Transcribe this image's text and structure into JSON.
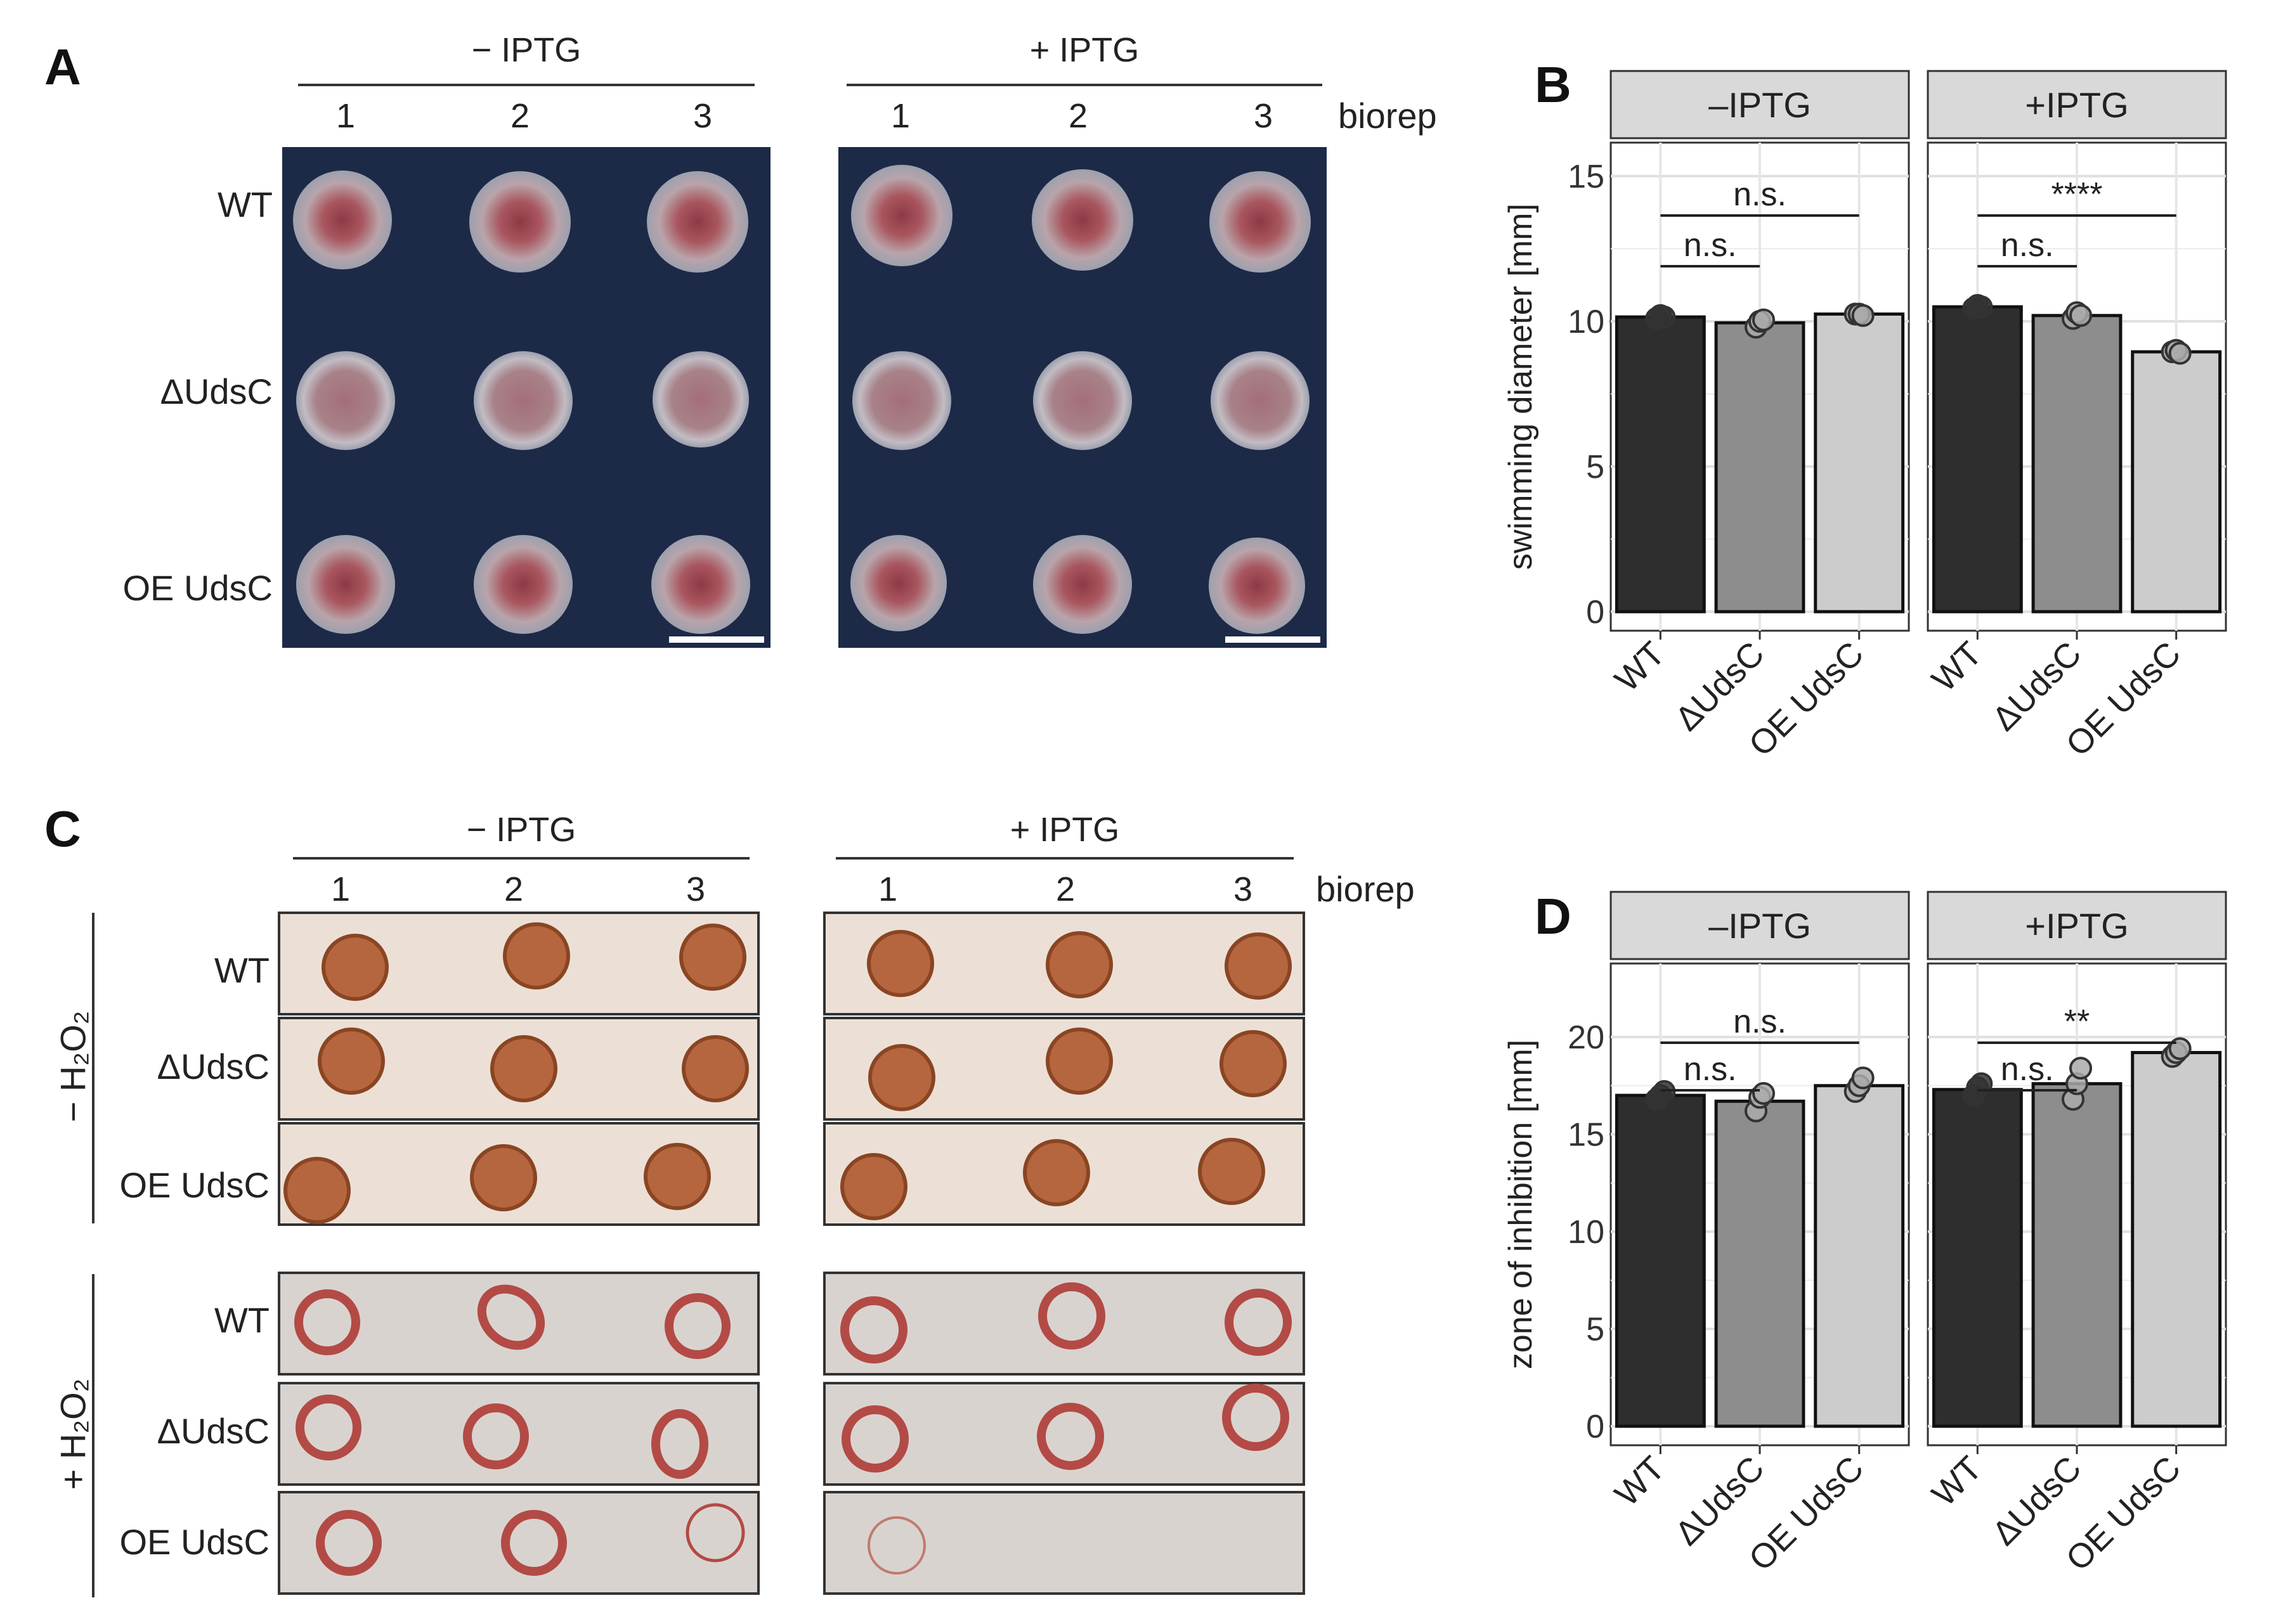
{
  "panel_labels": {
    "A": "A",
    "B": "B",
    "C": "C",
    "D": "D"
  },
  "conditions": {
    "minus": "− IPTG",
    "plus": "+ IPTG"
  },
  "bioreps": [
    "1",
    "2",
    "3"
  ],
  "biorep_label": "biorep",
  "strains": [
    "WT",
    "ΔUdsC",
    "OE UdsC"
  ],
  "peroxide_groups": {
    "minus": "− H₂O₂",
    "plus": "+ H₂O₂"
  },
  "colors": {
    "dark_plate": "#1c2a47",
    "agar_plate": "#ece0d6",
    "agar_plate_h2o2": "#d9d3cf",
    "colony_halo": "#b9b4bb",
    "colony_center": "#a46e79",
    "colony_red": "#9c4c52",
    "disk_brown": "#b5663e",
    "ring_red": "#b34a45",
    "bar_wt": "#2e2e2e",
    "bar_dudsc": "#8d8d8d",
    "bar_oe": "#cccccc",
    "strip": "#d9d9d9",
    "grid": "#ebebeb"
  },
  "chart_data": [
    {
      "panel": "B",
      "type": "bar",
      "ylabel": "swimming diameter [mm]",
      "ylim": [
        0,
        15.5
      ],
      "yticks": [
        0,
        5,
        10,
        15
      ],
      "categories": [
        "WT",
        "ΔUdsC",
        "OE UdsC"
      ],
      "facets": [
        {
          "label": "–IPTG",
          "values": [
            10.15,
            9.95,
            10.25
          ],
          "points": [
            [
              10.1,
              10.2,
              10.15
            ],
            [
              9.8,
              10.0,
              10.05
            ],
            [
              10.25,
              10.25,
              10.2
            ]
          ],
          "annotations": [
            {
              "from": 0,
              "to": 1,
              "text": "n.s.",
              "level": "low"
            },
            {
              "from": 0,
              "to": 2,
              "text": "n.s.",
              "level": "high"
            }
          ]
        },
        {
          "label": "+IPTG",
          "values": [
            10.5,
            10.2,
            8.95
          ],
          "points": [
            [
              10.45,
              10.55,
              10.5
            ],
            [
              10.1,
              10.3,
              10.2
            ],
            [
              8.95,
              9.0,
              8.9
            ]
          ],
          "annotations": [
            {
              "from": 0,
              "to": 1,
              "text": "n.s.",
              "level": "low"
            },
            {
              "from": 0,
              "to": 2,
              "text": "****",
              "level": "high"
            }
          ]
        }
      ]
    },
    {
      "panel": "D",
      "type": "bar",
      "ylabel": "zone of inhibition [mm]",
      "ylim": [
        0,
        22.8
      ],
      "yticks": [
        0,
        5,
        10,
        15,
        20
      ],
      "categories": [
        "WT",
        "ΔUdsC",
        "OE UdsC"
      ],
      "facets": [
        {
          "label": "–IPTG",
          "values": [
            17.0,
            16.7,
            17.5
          ],
          "points": [
            [
              16.8,
              17.0,
              17.2
            ],
            [
              16.2,
              16.9,
              17.1
            ],
            [
              17.2,
              17.5,
              17.9
            ]
          ],
          "annotations": [
            {
              "from": 0,
              "to": 1,
              "text": "n.s.",
              "level": "low"
            },
            {
              "from": 0,
              "to": 2,
              "text": "n.s.",
              "level": "high"
            }
          ]
        },
        {
          "label": "+IPTG",
          "values": [
            17.3,
            17.6,
            19.2
          ],
          "points": [
            [
              17.0,
              17.4,
              17.6
            ],
            [
              16.8,
              17.6,
              18.4
            ],
            [
              19.0,
              19.2,
              19.4
            ]
          ],
          "annotations": [
            {
              "from": 0,
              "to": 1,
              "text": "n.s.",
              "level": "low"
            },
            {
              "from": 0,
              "to": 2,
              "text": "**",
              "level": "high"
            }
          ]
        }
      ]
    }
  ]
}
